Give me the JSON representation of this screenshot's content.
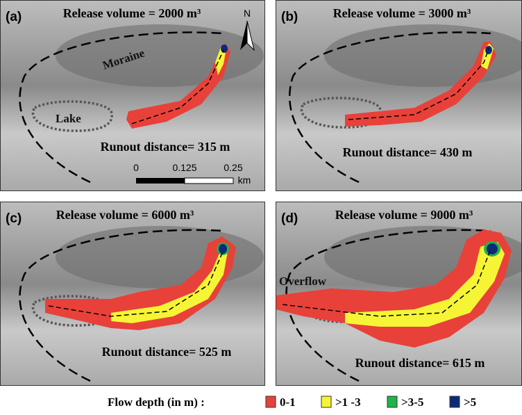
{
  "panels": [
    {
      "label": "(a)",
      "title": "Release volume = 2000 m³",
      "runout": "Runout distance= 315 m",
      "annotations": [
        "Moraine",
        "Lake"
      ],
      "north": "N",
      "scale": [
        "0",
        "0.125",
        "0.25",
        "km"
      ]
    },
    {
      "label": "(b)",
      "title": "Release volume = 3000 m³",
      "runout": "Runout distance= 430 m"
    },
    {
      "label": "(c)",
      "title": "Release volume = 6000 m³",
      "runout": "Runout distance= 525 m"
    },
    {
      "label": "(d)",
      "title": "Release volume = 9000 m³",
      "runout": "Runout distance= 615 m",
      "annotations": [
        "Overflow"
      ]
    }
  ],
  "legend": {
    "title": "Flow depth (in m) :",
    "items": [
      {
        "label": "0-1",
        "color": "#e8413a"
      },
      {
        "label": ">1 -3",
        "color": "#f5f536"
      },
      {
        "label": ">3-5",
        "color": "#1fb34a"
      },
      {
        "label": ">5",
        "color": "#0d2a7a"
      }
    ]
  }
}
